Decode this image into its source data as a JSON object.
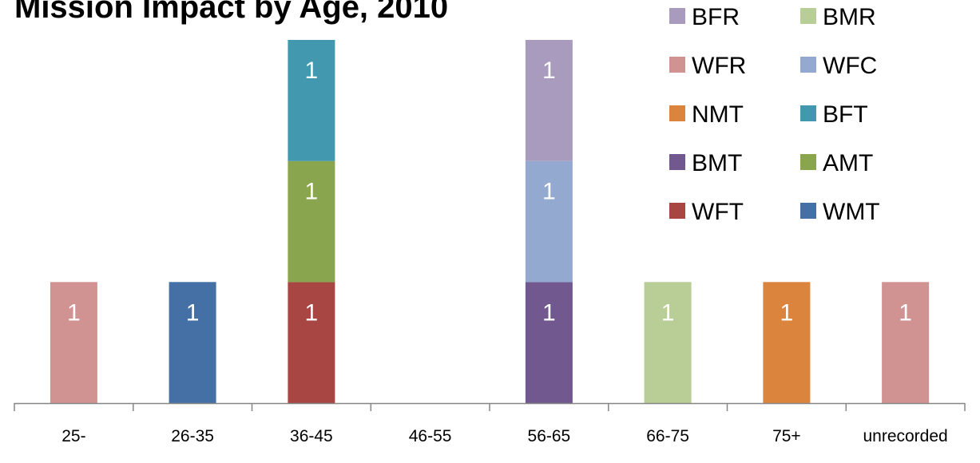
{
  "chart_data": {
    "type": "bar",
    "stacked": true,
    "title": "Mission Impact by Age, 2010",
    "xlabel": "",
    "ylabel": "",
    "categories": [
      "25-",
      "26-35",
      "36-45",
      "46-55",
      "56-65",
      "66-75",
      "75+",
      "unrecorded"
    ],
    "ylim": [
      0,
      3
    ],
    "grid": false,
    "legend_position": "top-right",
    "series": [
      {
        "name": "WMT",
        "color": "#4470A6",
        "values": [
          0,
          1,
          0,
          0,
          0,
          0,
          0,
          0
        ]
      },
      {
        "name": "WFT",
        "color": "#A74643",
        "values": [
          0,
          0,
          1,
          0,
          0,
          0,
          0,
          0
        ]
      },
      {
        "name": "AMT",
        "color": "#89A54E",
        "values": [
          0,
          0,
          1,
          0,
          0,
          0,
          0,
          0
        ]
      },
      {
        "name": "BMT",
        "color": "#71588F",
        "values": [
          0,
          0,
          0,
          0,
          1,
          0,
          0,
          0
        ]
      },
      {
        "name": "BFT",
        "color": "#4198AF",
        "values": [
          0,
          0,
          1,
          0,
          0,
          0,
          0,
          0
        ]
      },
      {
        "name": "NMT",
        "color": "#DB843D",
        "values": [
          0,
          0,
          0,
          0,
          0,
          0,
          1,
          0
        ]
      },
      {
        "name": "WFC",
        "color": "#93A9CF",
        "values": [
          0,
          0,
          0,
          0,
          1,
          0,
          0,
          0
        ]
      },
      {
        "name": "WFR",
        "color": "#D19392",
        "values": [
          1,
          0,
          0,
          0,
          0,
          0,
          0,
          1
        ]
      },
      {
        "name": "BMR",
        "color": "#B9CD96",
        "values": [
          0,
          0,
          0,
          0,
          0,
          1,
          0,
          0
        ]
      },
      {
        "name": "BFR",
        "color": "#A99BBD",
        "values": [
          0,
          0,
          0,
          0,
          1,
          0,
          0,
          0
        ]
      }
    ],
    "legend_order": [
      "BFR",
      "BMR",
      "WFR",
      "WFC",
      "NMT",
      "BFT",
      "BMT",
      "AMT",
      "WFT",
      "WMT"
    ]
  }
}
